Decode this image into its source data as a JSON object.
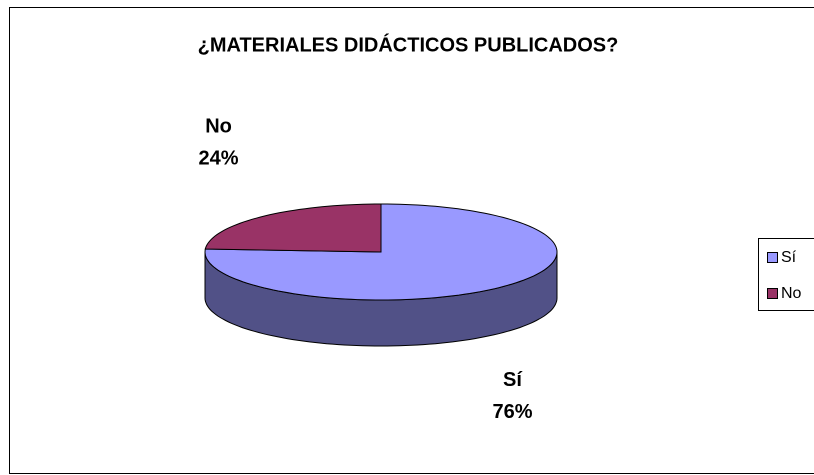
{
  "chart_data": {
    "type": "pie",
    "title": "¿MATERIALES DIDÁCTICOS PUBLICADOS?",
    "categories": [
      "Sí",
      "No"
    ],
    "values": [
      76,
      24
    ],
    "value_labels": [
      "76%",
      "24%"
    ],
    "colors": [
      "#9999ff",
      "#993366"
    ],
    "legend": "right"
  }
}
